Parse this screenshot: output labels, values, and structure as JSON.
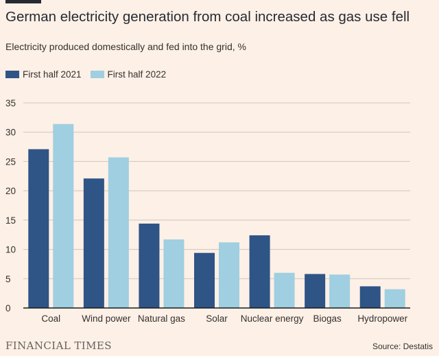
{
  "header": {
    "title": "German electricity generation from coal increased as gas use fell",
    "subtitle": "Electricity produced domestically and fed into the grid, %"
  },
  "legend": [
    {
      "label": "First half 2021",
      "color": "#2f5486"
    },
    {
      "label": "First half 2022",
      "color": "#9fcfe1"
    }
  ],
  "chart_data": {
    "type": "bar",
    "title": "German electricity generation from coal increased as gas use fell",
    "subtitle": "Electricity produced domestically and fed into the grid, %",
    "xlabel": "",
    "ylabel": "%",
    "ylim": [
      0,
      35
    ],
    "yticks": [
      0,
      5,
      10,
      15,
      20,
      25,
      30,
      35
    ],
    "grid": true,
    "legend_position": "top-left",
    "categories": [
      "Coal",
      "Wind power",
      "Natural gas",
      "Solar",
      "Nuclear energy",
      "Biogas",
      "Hydropower"
    ],
    "series": [
      {
        "name": "First half 2021",
        "color": "#2f5486",
        "values": [
          27.1,
          22.1,
          14.4,
          9.4,
          12.4,
          5.8,
          3.7
        ]
      },
      {
        "name": "First half 2022",
        "color": "#9fcfe1",
        "values": [
          31.4,
          25.7,
          11.7,
          11.2,
          6.0,
          5.7,
          3.2
        ]
      }
    ]
  },
  "footer": {
    "brand": "FINANCIAL TIMES",
    "source": "Source: Destatis"
  }
}
